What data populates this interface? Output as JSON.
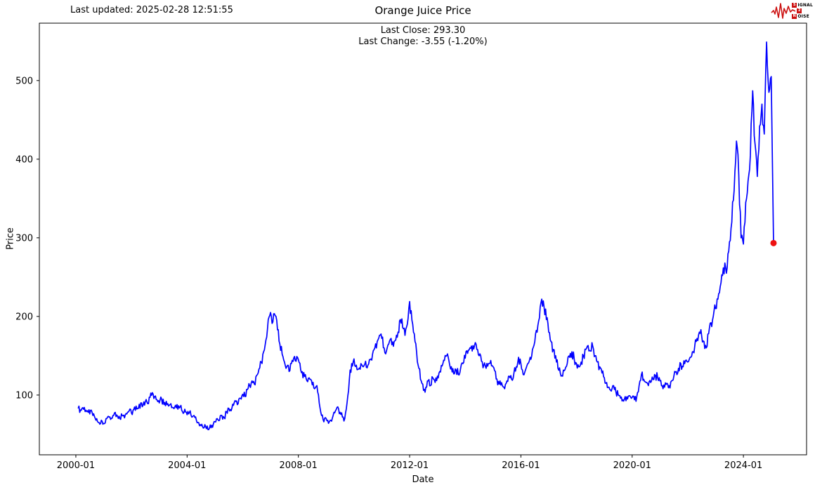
{
  "header": {
    "last_updated": "Last updated: 2025-02-28 12:51:55",
    "title": "Orange Juice Price",
    "last_close_line": "Last Close: 293.30",
    "last_change_line": "Last Change: -3.55 (-1.20%)"
  },
  "logo": {
    "s": "S",
    "ignal": "IGNAL",
    "two": "2",
    "n": "N",
    "oise": "OISE",
    "red": "#cc1111"
  },
  "chart_data": {
    "type": "line",
    "title": "Orange Juice Price",
    "subtitle": "Last Close: 293.30 | Last Change: -3.55 (-1.20%)",
    "xlabel": "Date",
    "ylabel": "Price",
    "grid": false,
    "legend": null,
    "line_color": "#0000ff",
    "last_point_color": "#ee1111",
    "x_ticks": [
      "2000-01",
      "2004-01",
      "2008-01",
      "2012-01",
      "2016-01",
      "2020-01",
      "2024-01"
    ],
    "x_tick_months": [
      0,
      48,
      96,
      144,
      192,
      240,
      288
    ],
    "y_ticks": [
      100,
      200,
      300,
      400,
      500
    ],
    "x_range_months": [
      -15.75,
      315.25
    ],
    "ylim": [
      24,
      573
    ],
    "series_start": "2000-02",
    "series_interval": "monthly",
    "last_close": 293.3,
    "last_change": -3.55,
    "last_change_pct": -1.2,
    "values": [
      83,
      81,
      84,
      79,
      80,
      76,
      78,
      73,
      70,
      65,
      68,
      64,
      70,
      73,
      69,
      74,
      78,
      73,
      70,
      74,
      71,
      76,
      80,
      77,
      82,
      86,
      83,
      90,
      87,
      92,
      89,
      97,
      103,
      98,
      94,
      90,
      95,
      88,
      92,
      86,
      89,
      84,
      87,
      82,
      85,
      79,
      82,
      75,
      78,
      72,
      74,
      68,
      65,
      61,
      58,
      60,
      56,
      62,
      59,
      66,
      70,
      68,
      74,
      71,
      79,
      83,
      80,
      87,
      92,
      89,
      96,
      101,
      98,
      107,
      112,
      118,
      114,
      125,
      133,
      142,
      155,
      170,
      196,
      205,
      193,
      201,
      183,
      165,
      152,
      142,
      136,
      130,
      140,
      147,
      143,
      145,
      132,
      122,
      126,
      117,
      120,
      113,
      108,
      112,
      90,
      74,
      66,
      70,
      64,
      68,
      74,
      80,
      85,
      78,
      72,
      70,
      90,
      120,
      140,
      146,
      138,
      133,
      140,
      136,
      143,
      138,
      145,
      152,
      160,
      168,
      176,
      172,
      160,
      156,
      165,
      172,
      162,
      170,
      180,
      196,
      186,
      176,
      190,
      219,
      195,
      178,
      155,
      134,
      118,
      106,
      110,
      118,
      112,
      122,
      116,
      124,
      130,
      137,
      144,
      150,
      143,
      136,
      127,
      132,
      126,
      134,
      140,
      147,
      153,
      160,
      156,
      163,
      158,
      150,
      143,
      138,
      134,
      140,
      144,
      136,
      130,
      113,
      118,
      112,
      108,
      118,
      124,
      120,
      128,
      136,
      148,
      140,
      126,
      132,
      140,
      148,
      158,
      168,
      180,
      198,
      222,
      212,
      196,
      180,
      168,
      158,
      150,
      134,
      128,
      124,
      132,
      140,
      148,
      155,
      146,
      140,
      136,
      142,
      150,
      158,
      163,
      156,
      162,
      150,
      142,
      136,
      128,
      122,
      116,
      110,
      105,
      112,
      104,
      100,
      96,
      94,
      98,
      95,
      99,
      97,
      94,
      98,
      112,
      126,
      120,
      116,
      112,
      116,
      120,
      125,
      122,
      118,
      112,
      110,
      115,
      112,
      118,
      124,
      130,
      134,
      140,
      136,
      144,
      142,
      148,
      155,
      162,
      172,
      180,
      175,
      168,
      160,
      178,
      192,
      200,
      210,
      222,
      238,
      252,
      268,
      262,
      295,
      320,
      360,
      423,
      380,
      300,
      292,
      345,
      372,
      405,
      487,
      420,
      378,
      442,
      470,
      432,
      549,
      485,
      505,
      293.3
    ]
  }
}
